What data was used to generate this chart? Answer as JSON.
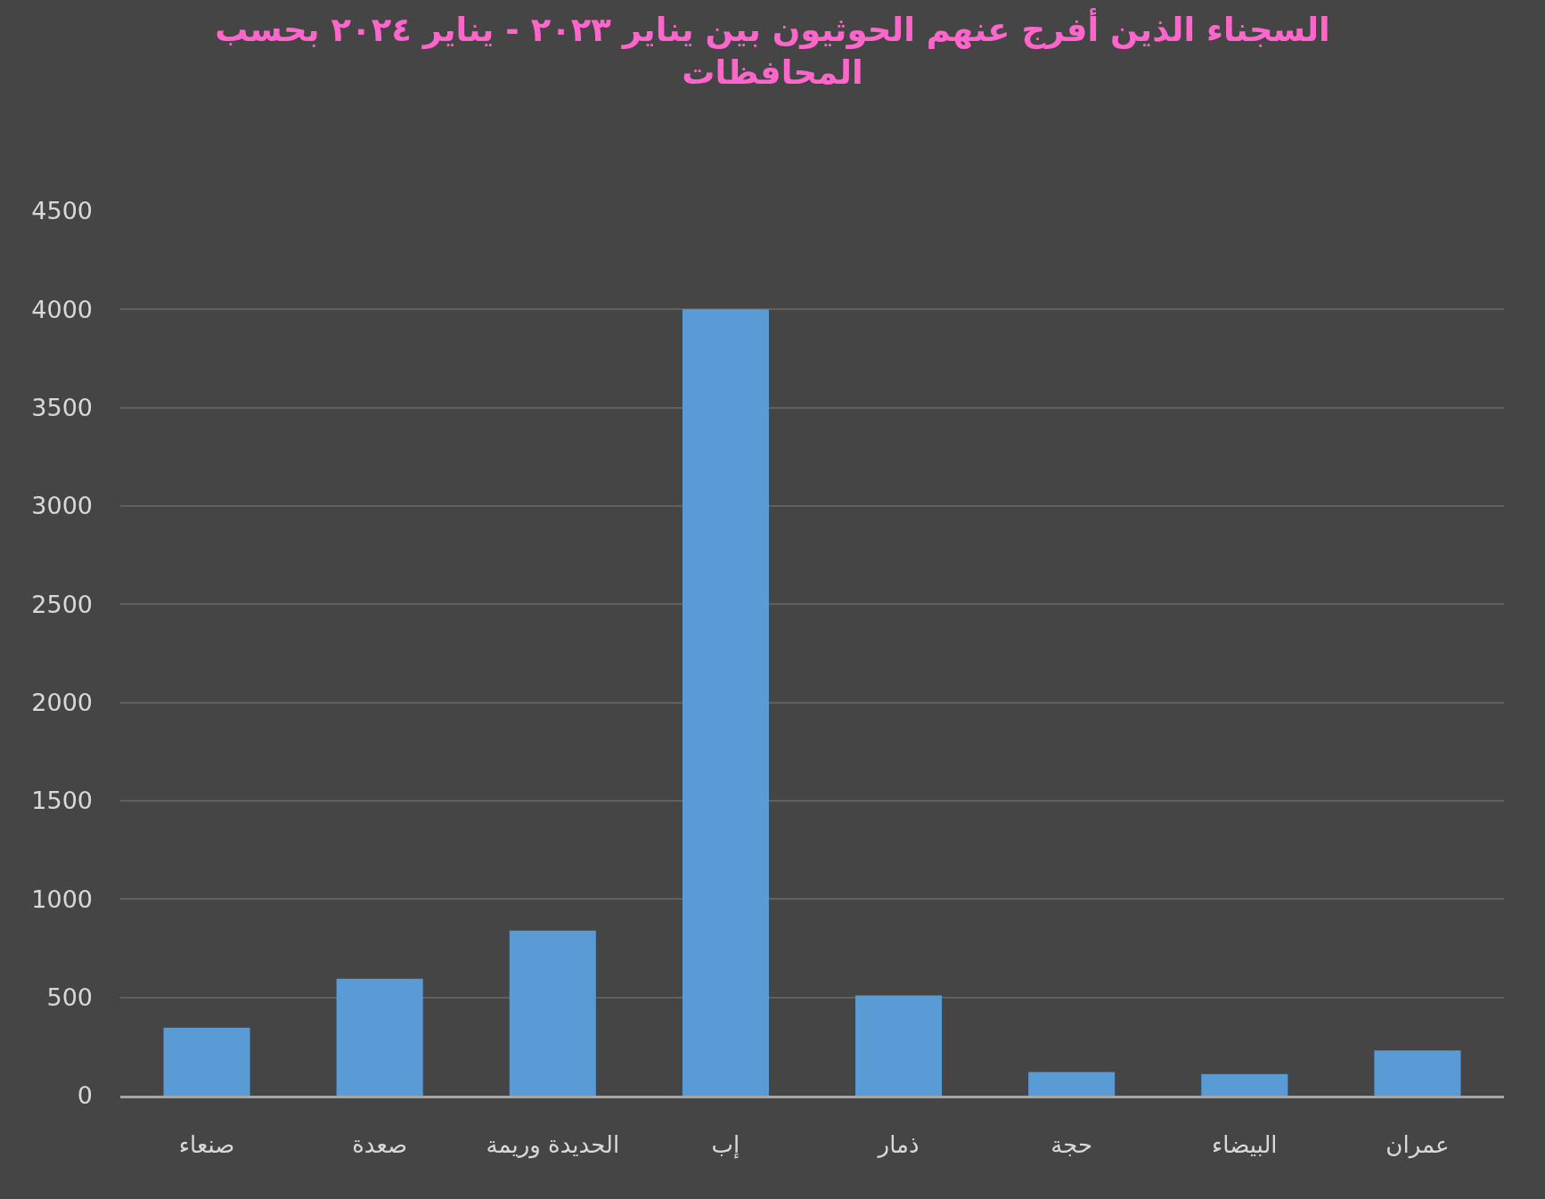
{
  "chart_data": {
    "type": "bar",
    "title": "السجناء الذين أفرج عنهم الحوثيون بين يناير ٢٠٢٣ - يناير ٢٠٢٤ بحسب\nالمحافظات",
    "categories": [
      "صنعاء",
      "صعدة",
      "الحديدة وريمة",
      "إب",
      "ذمار",
      "حجة",
      "البيضاء",
      "عمران"
    ],
    "values": [
      345,
      595,
      840,
      4000,
      510,
      120,
      110,
      230
    ],
    "color": "#5b9bd5",
    "ylim": [
      0,
      4500
    ],
    "yticks": [
      0,
      500,
      1000,
      1500,
      2000,
      2500,
      3000,
      3500,
      4000,
      4500
    ],
    "grid": "y"
  }
}
